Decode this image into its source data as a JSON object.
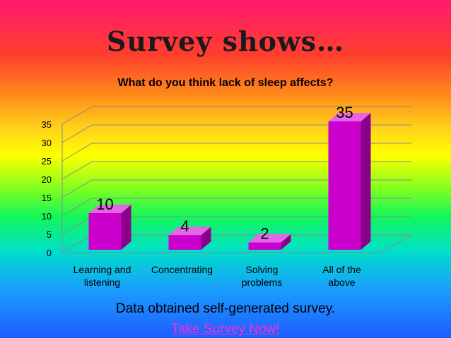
{
  "slide": {
    "title": "Survey shows…",
    "footer_note": "Data obtained self-generated survey.",
    "link_label": "Take Survey Now!"
  },
  "chart_data": {
    "type": "bar",
    "title": "What do you think lack of sleep affects?",
    "categories": [
      [
        "Learning and",
        "listening"
      ],
      [
        "Concentrating"
      ],
      [
        "Solving",
        "problems"
      ],
      [
        "All of the",
        "above"
      ]
    ],
    "values": [
      10,
      4,
      2,
      35
    ],
    "ylim": [
      0,
      35
    ],
    "yticks": [
      0,
      5,
      10,
      15,
      20,
      25,
      30,
      35
    ],
    "grid": true,
    "legend": "none",
    "style": "3d-column",
    "colors": {
      "front": "#cc00cc",
      "side": "#8a008a",
      "top": "#e466e4",
      "grid": "#8a8a8a"
    }
  }
}
